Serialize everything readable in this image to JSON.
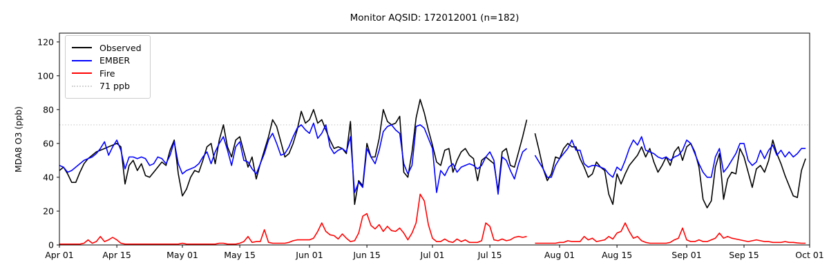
{
  "figure": {
    "background": "#ffffff",
    "border_color": "#000000"
  },
  "chart_data": {
    "type": "line",
    "title": "Monitor AQSID: 172012001 (n=182)",
    "ylabel": "MDA8 O3 (ppb)",
    "xlabel": "",
    "grid": false,
    "legend_position": "upper left",
    "ylim": [
      0,
      125.2
    ],
    "xlim_days": [
      0,
      183
    ],
    "x_start_date": "Apr 01",
    "x_end_date": "Oct 01",
    "y_ticks": [
      0,
      20,
      40,
      60,
      80,
      100,
      120
    ],
    "x_ticks": [
      {
        "day": 0,
        "label": "Apr 01"
      },
      {
        "day": 14,
        "label": "Apr 15"
      },
      {
        "day": 30,
        "label": "May 01"
      },
      {
        "day": 44,
        "label": "May 15"
      },
      {
        "day": 61,
        "label": "Jun 01"
      },
      {
        "day": 75,
        "label": "Jun 15"
      },
      {
        "day": 91,
        "label": "Jul 01"
      },
      {
        "day": 105,
        "label": "Jul 15"
      },
      {
        "day": 122,
        "label": "Aug 01"
      },
      {
        "day": 136,
        "label": "Aug 15"
      },
      {
        "day": 153,
        "label": "Sep 01"
      },
      {
        "day": 167,
        "label": "Sep 15"
      },
      {
        "day": 183,
        "label": "Oct 01"
      }
    ],
    "threshold": {
      "value": 71,
      "label": "71 ppb",
      "color": "#d3d3d3",
      "style": "dotted"
    },
    "missing_day_index": 115,
    "series": [
      {
        "name": "Observed",
        "color": "#000000",
        "style": "solid",
        "values": [
          44,
          46,
          42,
          37,
          37,
          43,
          48,
          51,
          53,
          55,
          56,
          57,
          58,
          59,
          60,
          58,
          36,
          47,
          50,
          44,
          48,
          41,
          40,
          43,
          46,
          49,
          47,
          56,
          62,
          42,
          29,
          33,
          40,
          44,
          43,
          50,
          58,
          60,
          48,
          62,
          71,
          58,
          52,
          62,
          64,
          55,
          46,
          52,
          39,
          48,
          56,
          64,
          74,
          70,
          61,
          52,
          54,
          60,
          68,
          79,
          72,
          74,
          80,
          72,
          74,
          68,
          62,
          57,
          58,
          57,
          54,
          73,
          24,
          38,
          35,
          60,
          52,
          52,
          63,
          80,
          73,
          71,
          72,
          76,
          43,
          40,
          55,
          75,
          86,
          78,
          68,
          59,
          49,
          47,
          56,
          57,
          43,
          50,
          55,
          57,
          53,
          51,
          38,
          50,
          52,
          50,
          48,
          32,
          55,
          57,
          47,
          46,
          55,
          64,
          74,
          null,
          66,
          56,
          45,
          38,
          42,
          52,
          51,
          57,
          60,
          58,
          58,
          51,
          46,
          40,
          42,
          49,
          46,
          44,
          30,
          24,
          42,
          36,
          42,
          47,
          50,
          53,
          58,
          52,
          57,
          49,
          43,
          47,
          52,
          47,
          55,
          58,
          50,
          58,
          60,
          55,
          46,
          27,
          22,
          26,
          46,
          54,
          27,
          39,
          43,
          42,
          57,
          52,
          43,
          34,
          45,
          47,
          43,
          50,
          62,
          54,
          48,
          41,
          35,
          29,
          28,
          44,
          51
        ]
      },
      {
        "name": "EMBER",
        "color": "#0000ff",
        "style": "solid",
        "values": [
          47,
          46,
          43,
          44,
          46,
          48,
          50,
          51,
          52,
          54,
          57,
          61,
          53,
          58,
          62,
          56,
          45,
          52,
          52,
          51,
          52,
          51,
          47,
          48,
          52,
          51,
          48,
          53,
          61,
          48,
          42,
          44,
          45,
          46,
          48,
          52,
          55,
          48,
          55,
          60,
          64,
          56,
          47,
          58,
          61,
          50,
          49,
          45,
          42,
          48,
          54,
          62,
          66,
          60,
          53,
          54,
          58,
          64,
          69,
          71,
          68,
          66,
          72,
          63,
          66,
          71,
          58,
          54,
          56,
          57,
          55,
          64,
          31,
          37,
          34,
          57,
          52,
          48,
          56,
          67,
          70,
          71,
          68,
          66,
          48,
          42,
          47,
          70,
          71,
          69,
          63,
          57,
          31,
          44,
          41,
          46,
          48,
          43,
          46,
          47,
          48,
          47,
          45,
          47,
          52,
          55,
          50,
          30,
          52,
          50,
          44,
          39,
          48,
          55,
          57,
          null,
          53,
          49,
          45,
          40,
          40,
          47,
          51,
          54,
          57,
          62,
          56,
          56,
          48,
          46,
          47,
          47,
          46,
          45,
          42,
          40,
          46,
          44,
          50,
          57,
          62,
          59,
          64,
          56,
          55,
          54,
          52,
          51,
          52,
          50,
          52,
          53,
          56,
          62,
          60,
          54,
          48,
          43,
          40,
          40,
          52,
          57,
          43,
          46,
          50,
          54,
          60,
          60,
          50,
          47,
          49,
          56,
          51,
          56,
          59,
          53,
          56,
          52,
          55,
          52,
          54,
          57,
          57
        ]
      },
      {
        "name": "Fire",
        "color": "#ff0000",
        "style": "solid",
        "values": [
          0.5,
          0.5,
          0.5,
          0.5,
          0.5,
          0.5,
          1,
          3,
          1,
          2,
          5,
          2,
          3,
          4.5,
          3,
          1,
          0.5,
          0.5,
          0.5,
          0.5,
          0.5,
          0.5,
          0.5,
          0.5,
          0.5,
          0.5,
          0.5,
          0.5,
          0.5,
          0.5,
          1,
          0.5,
          0.5,
          0.5,
          0.5,
          0.5,
          0.5,
          0.5,
          0.5,
          1,
          1,
          0.5,
          0.5,
          0.5,
          1,
          2,
          5,
          1.5,
          2,
          2,
          9,
          1.5,
          1,
          1,
          1,
          1,
          1.5,
          2.5,
          3,
          3,
          3,
          3,
          4,
          8,
          13,
          8,
          6,
          5.5,
          3.5,
          6.5,
          4,
          2,
          2.5,
          7,
          17,
          18.5,
          11.5,
          9.5,
          12,
          8,
          11,
          8.5,
          8,
          10,
          7,
          3,
          7,
          13,
          30,
          26,
          12,
          4,
          2,
          2,
          3.5,
          2,
          1.5,
          3.5,
          2,
          3,
          1.5,
          1.5,
          1.5,
          2.5,
          13,
          11,
          3,
          2.5,
          3.5,
          2.5,
          3,
          4.5,
          5,
          4.5,
          5,
          null,
          1,
          1,
          1,
          1,
          1,
          1,
          1.5,
          1.5,
          2.5,
          2,
          2,
          2,
          5,
          3,
          4,
          2,
          2.5,
          3,
          5,
          3.5,
          7,
          8,
          13,
          8,
          4,
          5,
          2.5,
          1.5,
          1,
          1,
          1,
          1,
          1,
          1.5,
          3,
          4,
          10,
          3,
          2,
          2,
          3,
          2,
          2,
          3,
          4,
          7,
          4,
          5,
          4,
          3.5,
          3,
          2.5,
          2,
          2.5,
          3,
          2.5,
          2,
          2,
          1.5,
          1.5,
          1.5,
          2,
          1.5,
          1.5,
          1.2,
          1,
          1
        ]
      }
    ]
  }
}
